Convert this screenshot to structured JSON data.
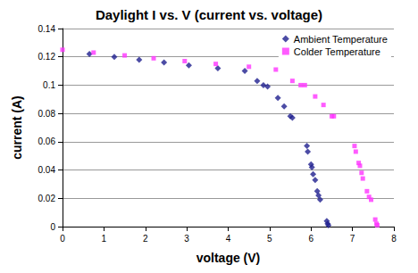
{
  "chart_data": {
    "type": "scatter",
    "title": "Daylight I vs. V (current vs. voltage)",
    "x_label": "voltage (V)",
    "y_label": "current (A)",
    "xlim": [
      0,
      8
    ],
    "xticks": [
      0,
      1,
      2,
      3,
      4,
      5,
      6,
      7,
      8
    ],
    "ylim": [
      0,
      0.14
    ],
    "yticks": [
      0,
      0.02,
      0.04,
      0.06,
      0.08,
      0.1,
      0.12,
      0.14
    ],
    "grid": true,
    "legend": "upper right",
    "series": [
      {
        "name": "Ambient Temperature",
        "color": "#1f1f8f",
        "marker": "diamond",
        "x": [
          0.65,
          1.25,
          1.85,
          2.45,
          3.05,
          3.75,
          4.4,
          4.7,
          4.85,
          4.95,
          5.2,
          5.35,
          5.5,
          5.55,
          5.9,
          5.92,
          6.0,
          6.02,
          6.05,
          6.1,
          6.15,
          6.18,
          6.22,
          6.38,
          6.4,
          6.42
        ],
        "values": [
          0.122,
          0.12,
          0.118,
          0.116,
          0.114,
          0.112,
          0.11,
          0.103,
          0.1,
          0.099,
          0.091,
          0.085,
          0.078,
          0.077,
          0.057,
          0.053,
          0.044,
          0.042,
          0.037,
          0.033,
          0.025,
          0.022,
          0.019,
          0.004,
          0.002,
          0.001
        ]
      },
      {
        "name": "Colder Temperature",
        "color": "#ff33ff",
        "marker": "square",
        "x": [
          0,
          0.75,
          1.5,
          2.2,
          2.95,
          3.7,
          4.5,
          5.15,
          5.55,
          5.75,
          5.85,
          6.1,
          6.3,
          6.5,
          6.55,
          7.05,
          7.08,
          7.15,
          7.18,
          7.22,
          7.25,
          7.35,
          7.4,
          7.45,
          7.55,
          7.58,
          7.6
        ],
        "values": [
          0.125,
          0.123,
          0.121,
          0.119,
          0.117,
          0.115,
          0.113,
          0.111,
          0.103,
          0.1,
          0.1,
          0.092,
          0.086,
          0.078,
          0.078,
          0.057,
          0.053,
          0.045,
          0.043,
          0.038,
          0.034,
          0.025,
          0.021,
          0.019,
          0.005,
          0.002,
          0.001
        ]
      }
    ]
  }
}
